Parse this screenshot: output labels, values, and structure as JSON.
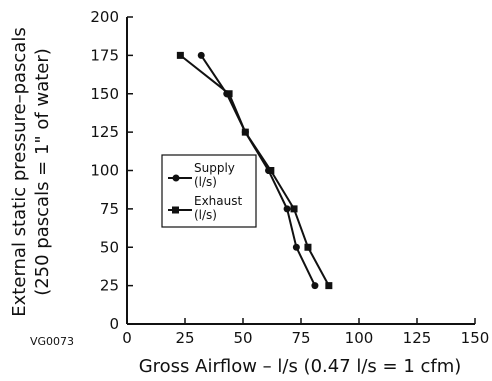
{
  "chart_data": {
    "type": "line",
    "title": "",
    "figure_id": "VG0073",
    "xlabel": "Gross Airflow – l/s (0.47 l/s = 1 cfm)",
    "ylabel_line1": "External static pressure–pascals",
    "ylabel_line2": "(250 pascals = 1\" of water)",
    "xlim": [
      0,
      150
    ],
    "ylim": [
      0,
      200
    ],
    "xticks": [
      0,
      25,
      50,
      75,
      100,
      125,
      150
    ],
    "yticks": [
      0,
      25,
      50,
      75,
      100,
      125,
      150,
      175,
      200
    ],
    "grid": false,
    "legend_position": "left-center",
    "series": [
      {
        "name_main": "Supply",
        "name_sub": "(l/s)",
        "marker": "circle",
        "points": [
          [
            32,
            175
          ],
          [
            43,
            150
          ],
          [
            51,
            125
          ],
          [
            61,
            100
          ],
          [
            69,
            75
          ],
          [
            73,
            50
          ],
          [
            81,
            25
          ]
        ]
      },
      {
        "name_main": "Exhaust",
        "name_sub": "(l/s)",
        "marker": "square",
        "points": [
          [
            23,
            175
          ],
          [
            44,
            150
          ],
          [
            51,
            125
          ],
          [
            62,
            100
          ],
          [
            72,
            75
          ],
          [
            78,
            50
          ],
          [
            87,
            25
          ]
        ]
      }
    ]
  }
}
